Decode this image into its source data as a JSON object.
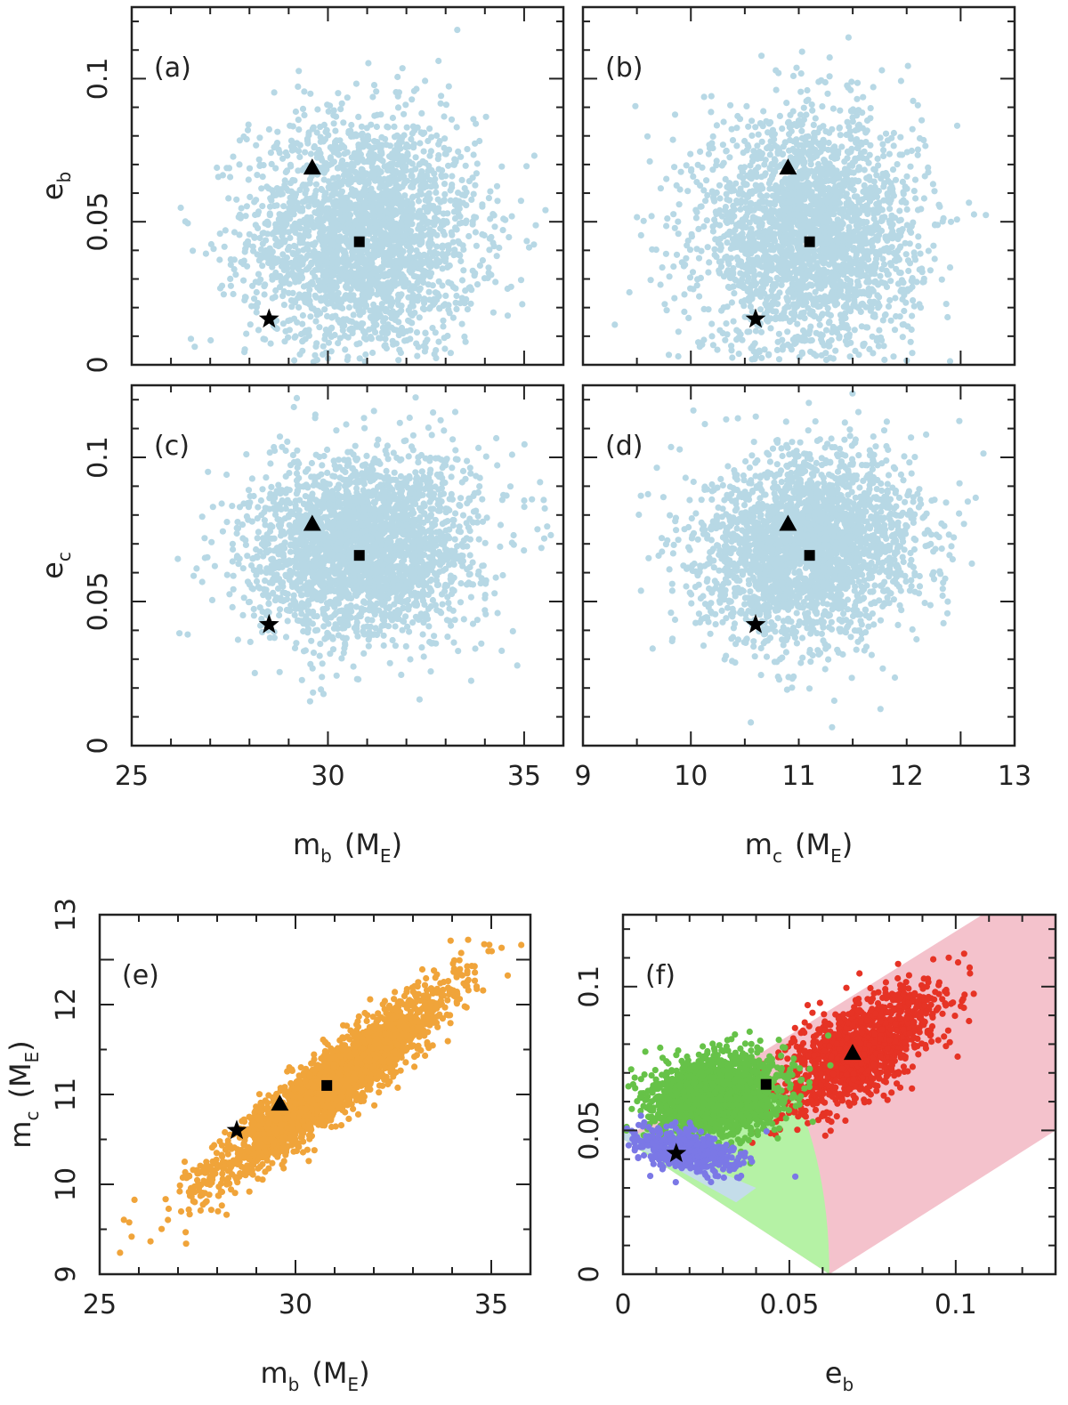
{
  "colors": {
    "mcmc_blue": "#b7d8e5",
    "mcmc_orange": "#f0a43a",
    "region_pink": "#f4c2cc",
    "region_lightgreen": "#b5f2a5",
    "region_lightblue": "#c4dde9",
    "points_red": "#e63325",
    "points_green": "#66c248",
    "points_purple": "#7b78e6"
  },
  "markers": {
    "star": {
      "name": "star-icon",
      "mb": 28.5,
      "mc": 10.6,
      "eb": 0.016,
      "ec": 0.042
    },
    "triangle": {
      "name": "triangle-icon",
      "mb": 29.6,
      "mc": 10.9,
      "eb": 0.069,
      "ec": 0.077
    },
    "square": {
      "name": "square-icon",
      "mb": 30.8,
      "mc": 11.1,
      "eb": 0.043,
      "ec": 0.066
    }
  },
  "chart_data": [
    {
      "id": "a",
      "type": "scatter",
      "panel_label": "(a)",
      "x_var": "m_b",
      "y_var": "e_b",
      "xlim": [
        25,
        36
      ],
      "ylim": [
        0,
        0.125
      ],
      "ylabel_main": "e",
      "ylabel_sub": "b",
      "yticks": [
        0,
        0.05,
        0.1
      ],
      "ytick_labels": [
        "0",
        "0.05",
        "0.1"
      ],
      "cloud": {
        "center": [
          30.9,
          0.045
        ],
        "spread": [
          1.45,
          0.021
        ],
        "corr": 0.0,
        "n": 2600
      }
    },
    {
      "id": "b",
      "type": "scatter",
      "panel_label": "(b)",
      "x_var": "m_c",
      "y_var": "e_b",
      "xlim": [
        9,
        13
      ],
      "ylim": [
        0,
        0.125
      ],
      "cloud": {
        "center": [
          11.1,
          0.045
        ],
        "spread": [
          0.5,
          0.021
        ],
        "corr": 0.0,
        "n": 2600
      }
    },
    {
      "id": "c",
      "type": "scatter",
      "panel_label": "(c)",
      "x_var": "m_b",
      "y_var": "e_c",
      "xlim": [
        25,
        36
      ],
      "ylim": [
        0,
        0.125
      ],
      "ylabel_main": "e",
      "ylabel_sub": "c",
      "yticks": [
        0,
        0.05,
        0.1
      ],
      "ytick_labels": [
        "0",
        "0.05",
        "0.1"
      ],
      "xticks": [
        25,
        30,
        35
      ],
      "xtick_labels": [
        "25",
        "30",
        "35"
      ],
      "xlabel_main": "m",
      "xlabel_sub": "b",
      "xlabel_unit": "(M",
      "xlabel_unit_sub": "E",
      "xlabel_close": ")",
      "cloud": {
        "center": [
          30.9,
          0.069
        ],
        "spread": [
          1.45,
          0.016
        ],
        "corr": 0.1,
        "n": 2600
      }
    },
    {
      "id": "d",
      "type": "scatter",
      "panel_label": "(d)",
      "x_var": "m_c",
      "y_var": "e_c",
      "xlim": [
        9,
        13
      ],
      "ylim": [
        0,
        0.125
      ],
      "xticks": [
        9,
        10,
        11,
        12,
        13
      ],
      "xtick_labels": [
        "9",
        "10",
        "11",
        "12",
        "13"
      ],
      "xlabel_main": "m",
      "xlabel_sub": "c",
      "xlabel_unit": "(M",
      "xlabel_unit_sub": "E",
      "xlabel_close": ")",
      "cloud": {
        "center": [
          11.1,
          0.069
        ],
        "spread": [
          0.5,
          0.016
        ],
        "corr": 0.1,
        "n": 2600
      }
    },
    {
      "id": "e",
      "type": "scatter",
      "panel_label": "(e)",
      "x_var": "m_b",
      "y_var": "m_c",
      "xlim": [
        25,
        36
      ],
      "ylim": [
        9,
        13
      ],
      "xticks": [
        25,
        30,
        35
      ],
      "xtick_labels": [
        "25",
        "30",
        "35"
      ],
      "yticks": [
        9,
        10,
        11,
        12,
        13
      ],
      "ytick_labels": [
        "9",
        "10",
        "11",
        "12",
        "13"
      ],
      "xlabel_main": "m",
      "xlabel_sub": "b",
      "xlabel_unit": "(M",
      "xlabel_unit_sub": "E",
      "xlabel_close": ")",
      "ylabel_main": "m",
      "ylabel_sub": "c",
      "ylabel_unit": "(M",
      "ylabel_unit_sub": "E",
      "ylabel_close": ")",
      "cloud": {
        "center": [
          30.9,
          11.1
        ],
        "spread": [
          1.45,
          0.52
        ],
        "corr": 0.93,
        "n": 2800
      }
    },
    {
      "id": "f",
      "type": "scatter",
      "panel_label": "(f)",
      "x_var": "e_b",
      "y_var": "e_c",
      "xlim": [
        0,
        0.13
      ],
      "ylim": [
        0,
        0.125
      ],
      "xticks": [
        0,
        0.05,
        0.1
      ],
      "xtick_labels": [
        "0",
        "0.05",
        "0.1"
      ],
      "yticks": [
        0,
        0.05,
        0.1
      ],
      "ytick_labels": [
        "0",
        "0.05",
        "0.1"
      ],
      "xlabel_main": "e",
      "xlabel_sub": "b",
      "regions": [
        "pink",
        "lightgreen",
        "lightblue"
      ],
      "clusters": [
        {
          "color": "red",
          "center": [
            0.071,
            0.078
          ],
          "spread": [
            0.012,
            0.011
          ],
          "corr": 0.7,
          "n": 1300
        },
        {
          "color": "green",
          "center": [
            0.028,
            0.062
          ],
          "spread": [
            0.01,
            0.007
          ],
          "corr": 0.2,
          "n": 1800
        },
        {
          "color": "purple",
          "center": [
            0.018,
            0.043
          ],
          "spread": [
            0.008,
            0.004
          ],
          "corr": -0.4,
          "n": 500
        }
      ]
    }
  ]
}
